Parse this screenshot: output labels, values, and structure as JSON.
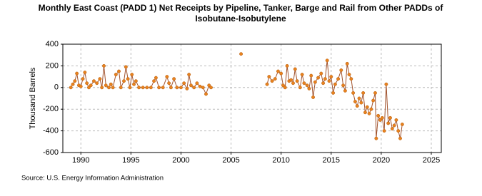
{
  "chart_data": {
    "type": "line",
    "title": "Monthly East Coast (PADD 1) Net Receipts by Pipeline, Tanker, Barge and Rail from Other PADDs of Isobutane-Isobutylene",
    "y_label": "Thousand Barrels",
    "source": "Source: U.S. Energy Information Administration",
    "xlim": [
      1988.2,
      2026
    ],
    "xticks": [
      1990,
      1995,
      2000,
      2005,
      2010,
      2015,
      2020,
      2025
    ],
    "ylim": [
      -600,
      400
    ],
    "yticks": [
      -600,
      -400,
      -200,
      0,
      200,
      400
    ],
    "grid": true,
    "series": [
      {
        "color": "#e8821e",
        "x": [
          1989.0,
          1989.2,
          1989.4,
          1989.6,
          1989.8,
          1990.0,
          1990.2,
          1990.4,
          1990.6,
          1990.8,
          1991.0,
          1991.3,
          1991.6,
          1991.9,
          1992.1,
          1992.3,
          1992.5,
          1992.8,
          1993.0,
          1993.2,
          1993.5,
          1993.8,
          1994.0,
          1994.3,
          1994.5,
          1994.7,
          1994.9,
          1995.1,
          1995.3,
          1995.5,
          1995.8,
          1996.2,
          1996.6,
          1997.0,
          1997.3,
          1997.5,
          1997.8,
          1998.2,
          1998.6,
          1998.8,
          1999.0,
          1999.3,
          1999.6,
          2000.0,
          2000.3,
          2000.6,
          2000.8,
          2001.0,
          2001.3,
          2001.6,
          2001.9,
          2002.2,
          2002.5,
          2002.8,
          2003.0,
          2004.5,
          2006.0,
          2007.3,
          2008.6,
          2008.8,
          2009.1,
          2009.4,
          2009.7,
          2010.0,
          2010.2,
          2010.4,
          2010.6,
          2010.8,
          2011.0,
          2011.2,
          2011.4,
          2011.6,
          2011.9,
          2012.1,
          2012.3,
          2012.6,
          2012.8,
          2013.0,
          2013.2,
          2013.4,
          2013.7,
          2014.0,
          2014.2,
          2014.4,
          2014.6,
          2014.8,
          2015.0,
          2015.2,
          2015.4,
          2015.7,
          2016.0,
          2016.2,
          2016.4,
          2016.6,
          2016.8,
          2017.0,
          2017.2,
          2017.4,
          2017.6,
          2017.8,
          2018.0,
          2018.2,
          2018.4,
          2018.6,
          2018.8,
          2019.0,
          2019.2,
          2019.4,
          2019.5,
          2019.7,
          2019.9,
          2020.1,
          2020.3,
          2020.5,
          2020.7,
          2020.9,
          2021.1,
          2021.3,
          2021.5,
          2021.7,
          2021.9,
          2022.1
        ],
        "values": [
          0,
          30,
          60,
          130,
          20,
          10,
          80,
          140,
          40,
          0,
          20,
          60,
          40,
          80,
          0,
          200,
          20,
          0,
          30,
          0,
          120,
          150,
          0,
          60,
          190,
          80,
          0,
          120,
          30,
          60,
          0,
          0,
          0,
          0,
          60,
          90,
          0,
          0,
          100,
          40,
          0,
          80,
          0,
          0,
          40,
          -10,
          120,
          20,
          0,
          40,
          10,
          0,
          -60,
          20,
          0,
          null,
          310,
          null,
          30,
          100,
          60,
          80,
          150,
          130,
          20,
          0,
          200,
          60,
          70,
          40,
          170,
          60,
          0,
          120,
          40,
          20,
          -10,
          110,
          -90,
          50,
          90,
          130,
          40,
          80,
          250,
          60,
          100,
          -50,
          30,
          80,
          160,
          20,
          -30,
          220,
          120,
          80,
          -50,
          -130,
          -170,
          -100,
          -140,
          -50,
          -230,
          -180,
          -240,
          -200,
          -120,
          -50,
          -470,
          -260,
          -300,
          -280,
          -400,
          30,
          -330,
          -280,
          -380,
          -350,
          -300,
          -400,
          -470,
          -340
        ]
      }
    ]
  }
}
